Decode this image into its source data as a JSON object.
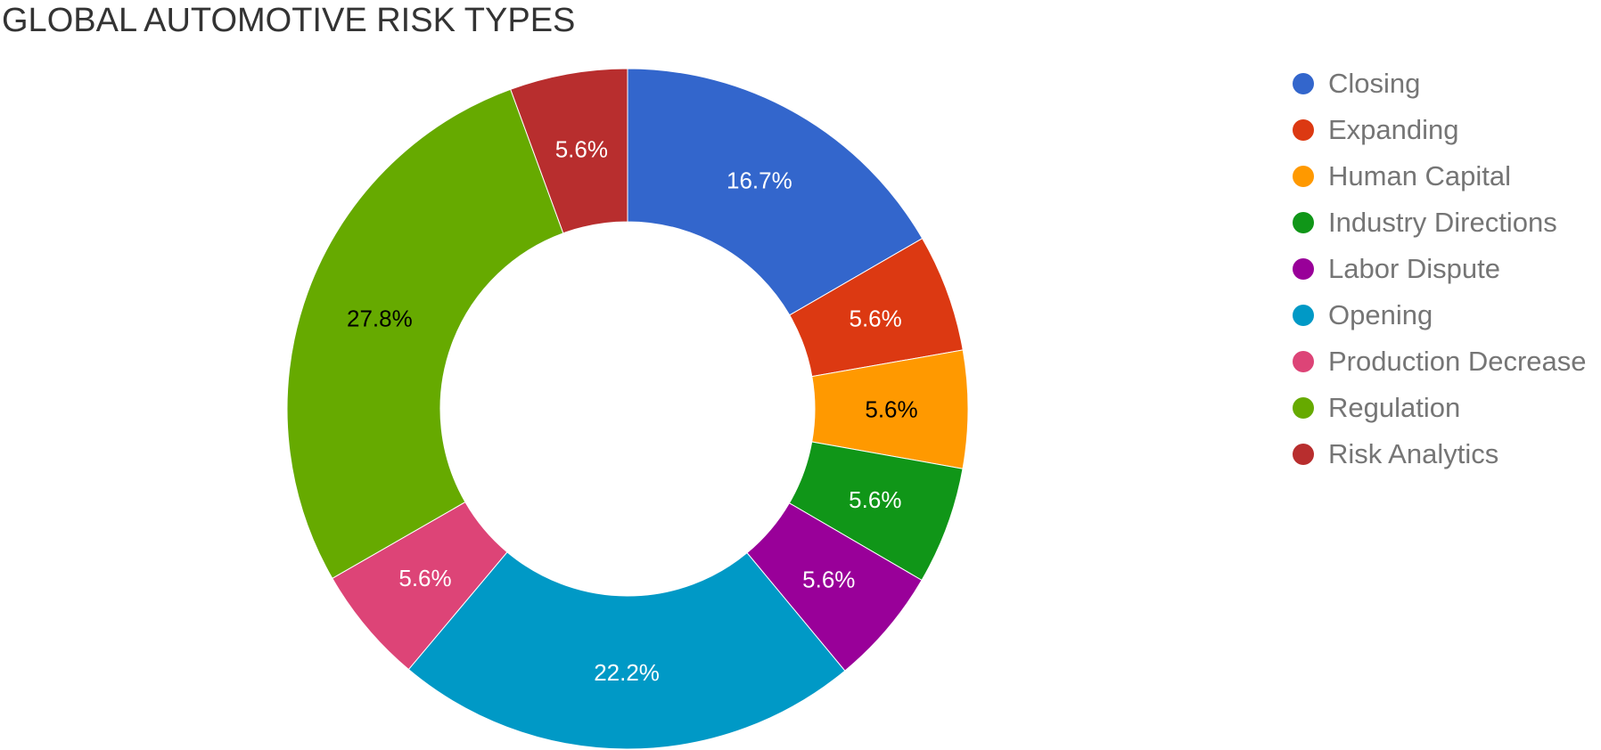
{
  "chart_data": {
    "type": "pie",
    "style": "donut",
    "title": "GLOBAL AUTOMOTIVE RISK TYPES",
    "legend_position": "right",
    "categories": [
      "Closing",
      "Expanding",
      "Human Capital",
      "Industry Directions",
      "Labor Dispute",
      "Opening",
      "Production Decrease",
      "Regulation",
      "Risk Analytics"
    ],
    "values": [
      16.7,
      5.6,
      5.6,
      5.6,
      5.6,
      22.2,
      5.6,
      27.8,
      5.6
    ],
    "labels": [
      "16.7%",
      "5.6%",
      "5.6%",
      "5.6%",
      "5.6%",
      "22.2%",
      "5.6%",
      "27.8%",
      "5.6%"
    ],
    "colors": [
      "#3366cc",
      "#dc3912",
      "#ff9900",
      "#109618",
      "#990099",
      "#0099c6",
      "#dd4477",
      "#66aa00",
      "#b82e2e"
    ],
    "label_colors": [
      "#ffffff",
      "#ffffff",
      "#000000",
      "#ffffff",
      "#ffffff",
      "#ffffff",
      "#ffffff",
      "#000000",
      "#ffffff"
    ]
  }
}
